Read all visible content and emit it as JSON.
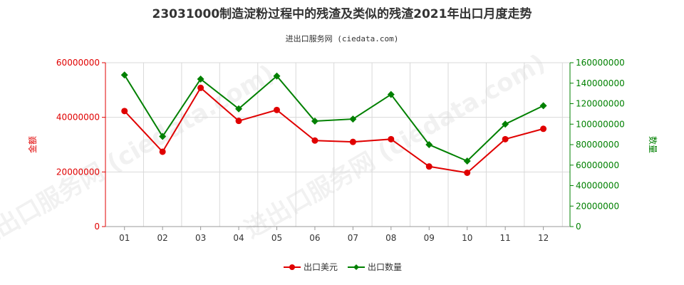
{
  "chart_data": {
    "type": "line",
    "title": "23031000制造淀粉过程中的残渣及类似的残渣2021年出口月度走势",
    "subtitle": "进出口服务网 (ciedata.com)",
    "watermark": "进出口服务网 (ciedata.com)",
    "categories": [
      "01",
      "02",
      "03",
      "04",
      "05",
      "06",
      "07",
      "08",
      "09",
      "10",
      "11",
      "12"
    ],
    "y_left": {
      "label": "金额",
      "ylim": [
        0,
        60000000
      ],
      "ticks": [
        "0",
        "20000000",
        "40000000",
        "60000000"
      ],
      "color": "#e00000"
    },
    "y_right": {
      "label": "数量",
      "ylim": [
        0,
        160000000
      ],
      "ticks": [
        "0",
        "20000000",
        "40000000",
        "60000000",
        "80000000",
        "100000000",
        "120000000",
        "140000000",
        "160000000"
      ],
      "color": "#008000"
    },
    "series": [
      {
        "name": "出口美元",
        "axis": "left",
        "color": "#e00000",
        "values": [
          42300000,
          27400000,
          50800000,
          38700000,
          42700000,
          31500000,
          31000000,
          32000000,
          22000000,
          19700000,
          32000000,
          35800000
        ]
      },
      {
        "name": "出口数量",
        "axis": "right",
        "color": "#008000",
        "values": [
          148000000,
          88000000,
          144000000,
          115000000,
          147000000,
          103000000,
          105000000,
          129000000,
          80000000,
          64000000,
          100000000,
          118000000
        ]
      }
    ],
    "grid": true,
    "legend": "bottom-center"
  }
}
